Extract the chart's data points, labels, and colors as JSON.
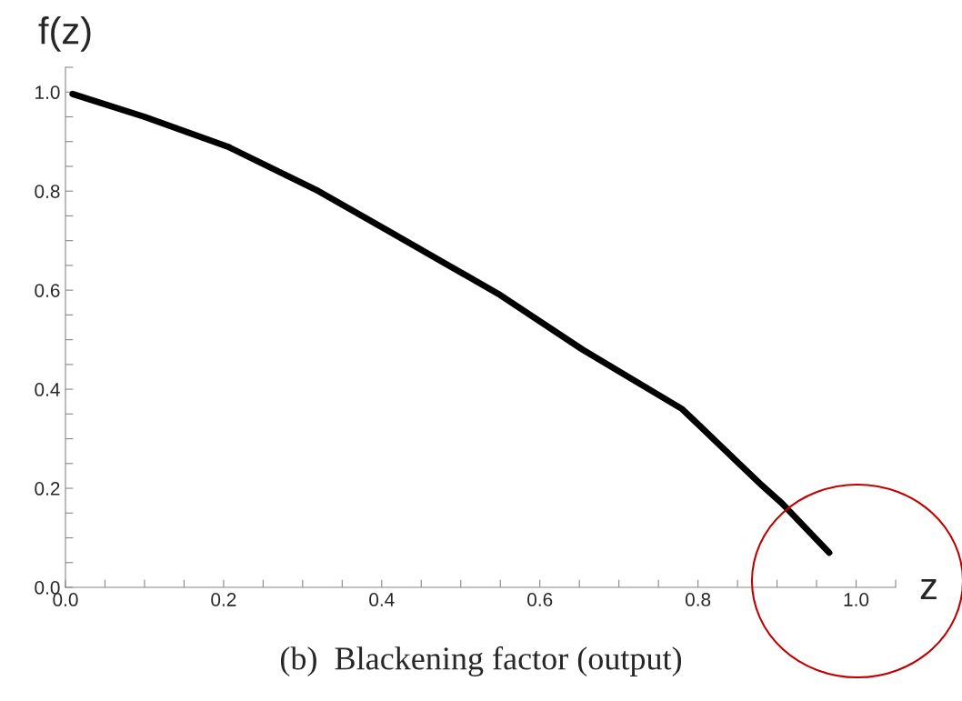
{
  "chart_data": {
    "type": "line",
    "xlabel": "z",
    "ylabel": "f(z)",
    "x": [
      0.009,
      0.1,
      0.205,
      0.32,
      0.43,
      0.55,
      0.654,
      0.78,
      0.878,
      0.906,
      0.966
    ],
    "series": [
      {
        "color": "#000000",
        "values": [
          0.996,
          0.95,
          0.89,
          0.8,
          0.7,
          0.59,
          0.48,
          0.36,
          0.21,
          0.17,
          0.07
        ]
      }
    ],
    "xlim": [
      0,
      1.05
    ],
    "ylim": [
      0,
      1.05
    ],
    "xticks": [
      {
        "value": 0,
        "label": "0.0"
      },
      {
        "value": 0.05,
        "label": null
      },
      {
        "value": 0.1,
        "label": null
      },
      {
        "value": 0.15,
        "label": null
      },
      0.2,
      {
        "value": 0.25,
        "label": null
      },
      {
        "value": 0.3,
        "label": null
      },
      {
        "value": 0.35,
        "label": null
      },
      0.4,
      {
        "value": 0.45,
        "label": null
      },
      {
        "value": 0.5,
        "label": null
      },
      {
        "value": 0.55,
        "label": null
      },
      0.6,
      {
        "value": 0.65,
        "label": null
      },
      {
        "value": 0.7,
        "label": null
      },
      {
        "value": 0.75,
        "label": null
      },
      0.8,
      {
        "value": 0.85,
        "label": null
      },
      {
        "value": 0.9,
        "label": null
      },
      {
        "value": 0.95,
        "label": null
      },
      {
        "value": 1,
        "label": "1.0"
      },
      {
        "value": 1.05,
        "label": null
      }
    ],
    "yticks": [
      {
        "value": 0,
        "label": "0.0"
      },
      {
        "value": 0.05,
        "label": null
      },
      {
        "value": 0.1,
        "label": null
      },
      {
        "value": 0.15,
        "label": null
      },
      0.2,
      {
        "value": 0.25,
        "label": null
      },
      {
        "value": 0.3,
        "label": null
      },
      {
        "value": 0.35,
        "label": null
      },
      0.4,
      {
        "value": 0.45,
        "label": null
      },
      {
        "value": 0.5,
        "label": null
      },
      {
        "value": 0.55,
        "label": null
      },
      0.6,
      {
        "value": 0.65,
        "label": null
      },
      {
        "value": 0.7,
        "label": null
      },
      {
        "value": 0.75,
        "label": null
      },
      0.8,
      {
        "value": 0.85,
        "label": null
      },
      {
        "value": 0.9,
        "label": null
      },
      {
        "value": 0.95,
        "label": null
      },
      {
        "value": 1,
        "label": "1.0"
      },
      {
        "value": 1.05,
        "label": null
      }
    ],
    "grid": false,
    "marker": "none",
    "line_style": "solid",
    "annotations": [
      "(b)  Blackening factor (output)"
    ]
  }
}
